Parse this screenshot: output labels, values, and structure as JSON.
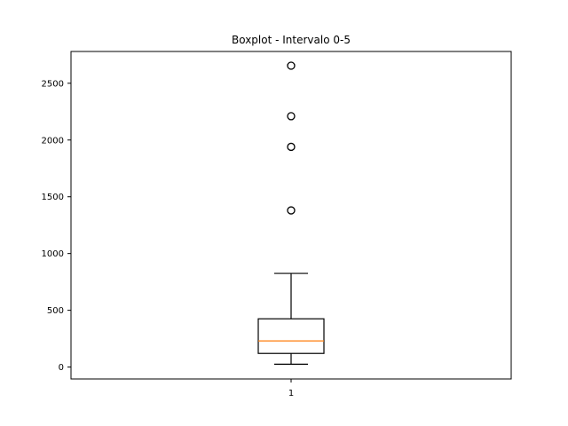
{
  "chart_data": {
    "type": "boxplot",
    "title": "Boxplot - Intervalo 0-5",
    "xlabel": "",
    "ylabel": "",
    "categories": [
      "1"
    ],
    "ylim": [
      -105,
      2780
    ],
    "yticks": [
      0,
      500,
      1000,
      1500,
      2000,
      2500
    ],
    "ytick_labels": [
      "0",
      "500",
      "1000",
      "1500",
      "2000",
      "2500"
    ],
    "series": [
      {
        "whisker_low": 25,
        "q1": 120,
        "median": 230,
        "q3": 425,
        "whisker_high": 825,
        "outliers": [
          1380,
          1940,
          2210,
          2655
        ]
      }
    ],
    "grid": false,
    "colors": {
      "box": "#000000",
      "median": "#ff7f0e",
      "outlier_edge": "#000000"
    }
  }
}
